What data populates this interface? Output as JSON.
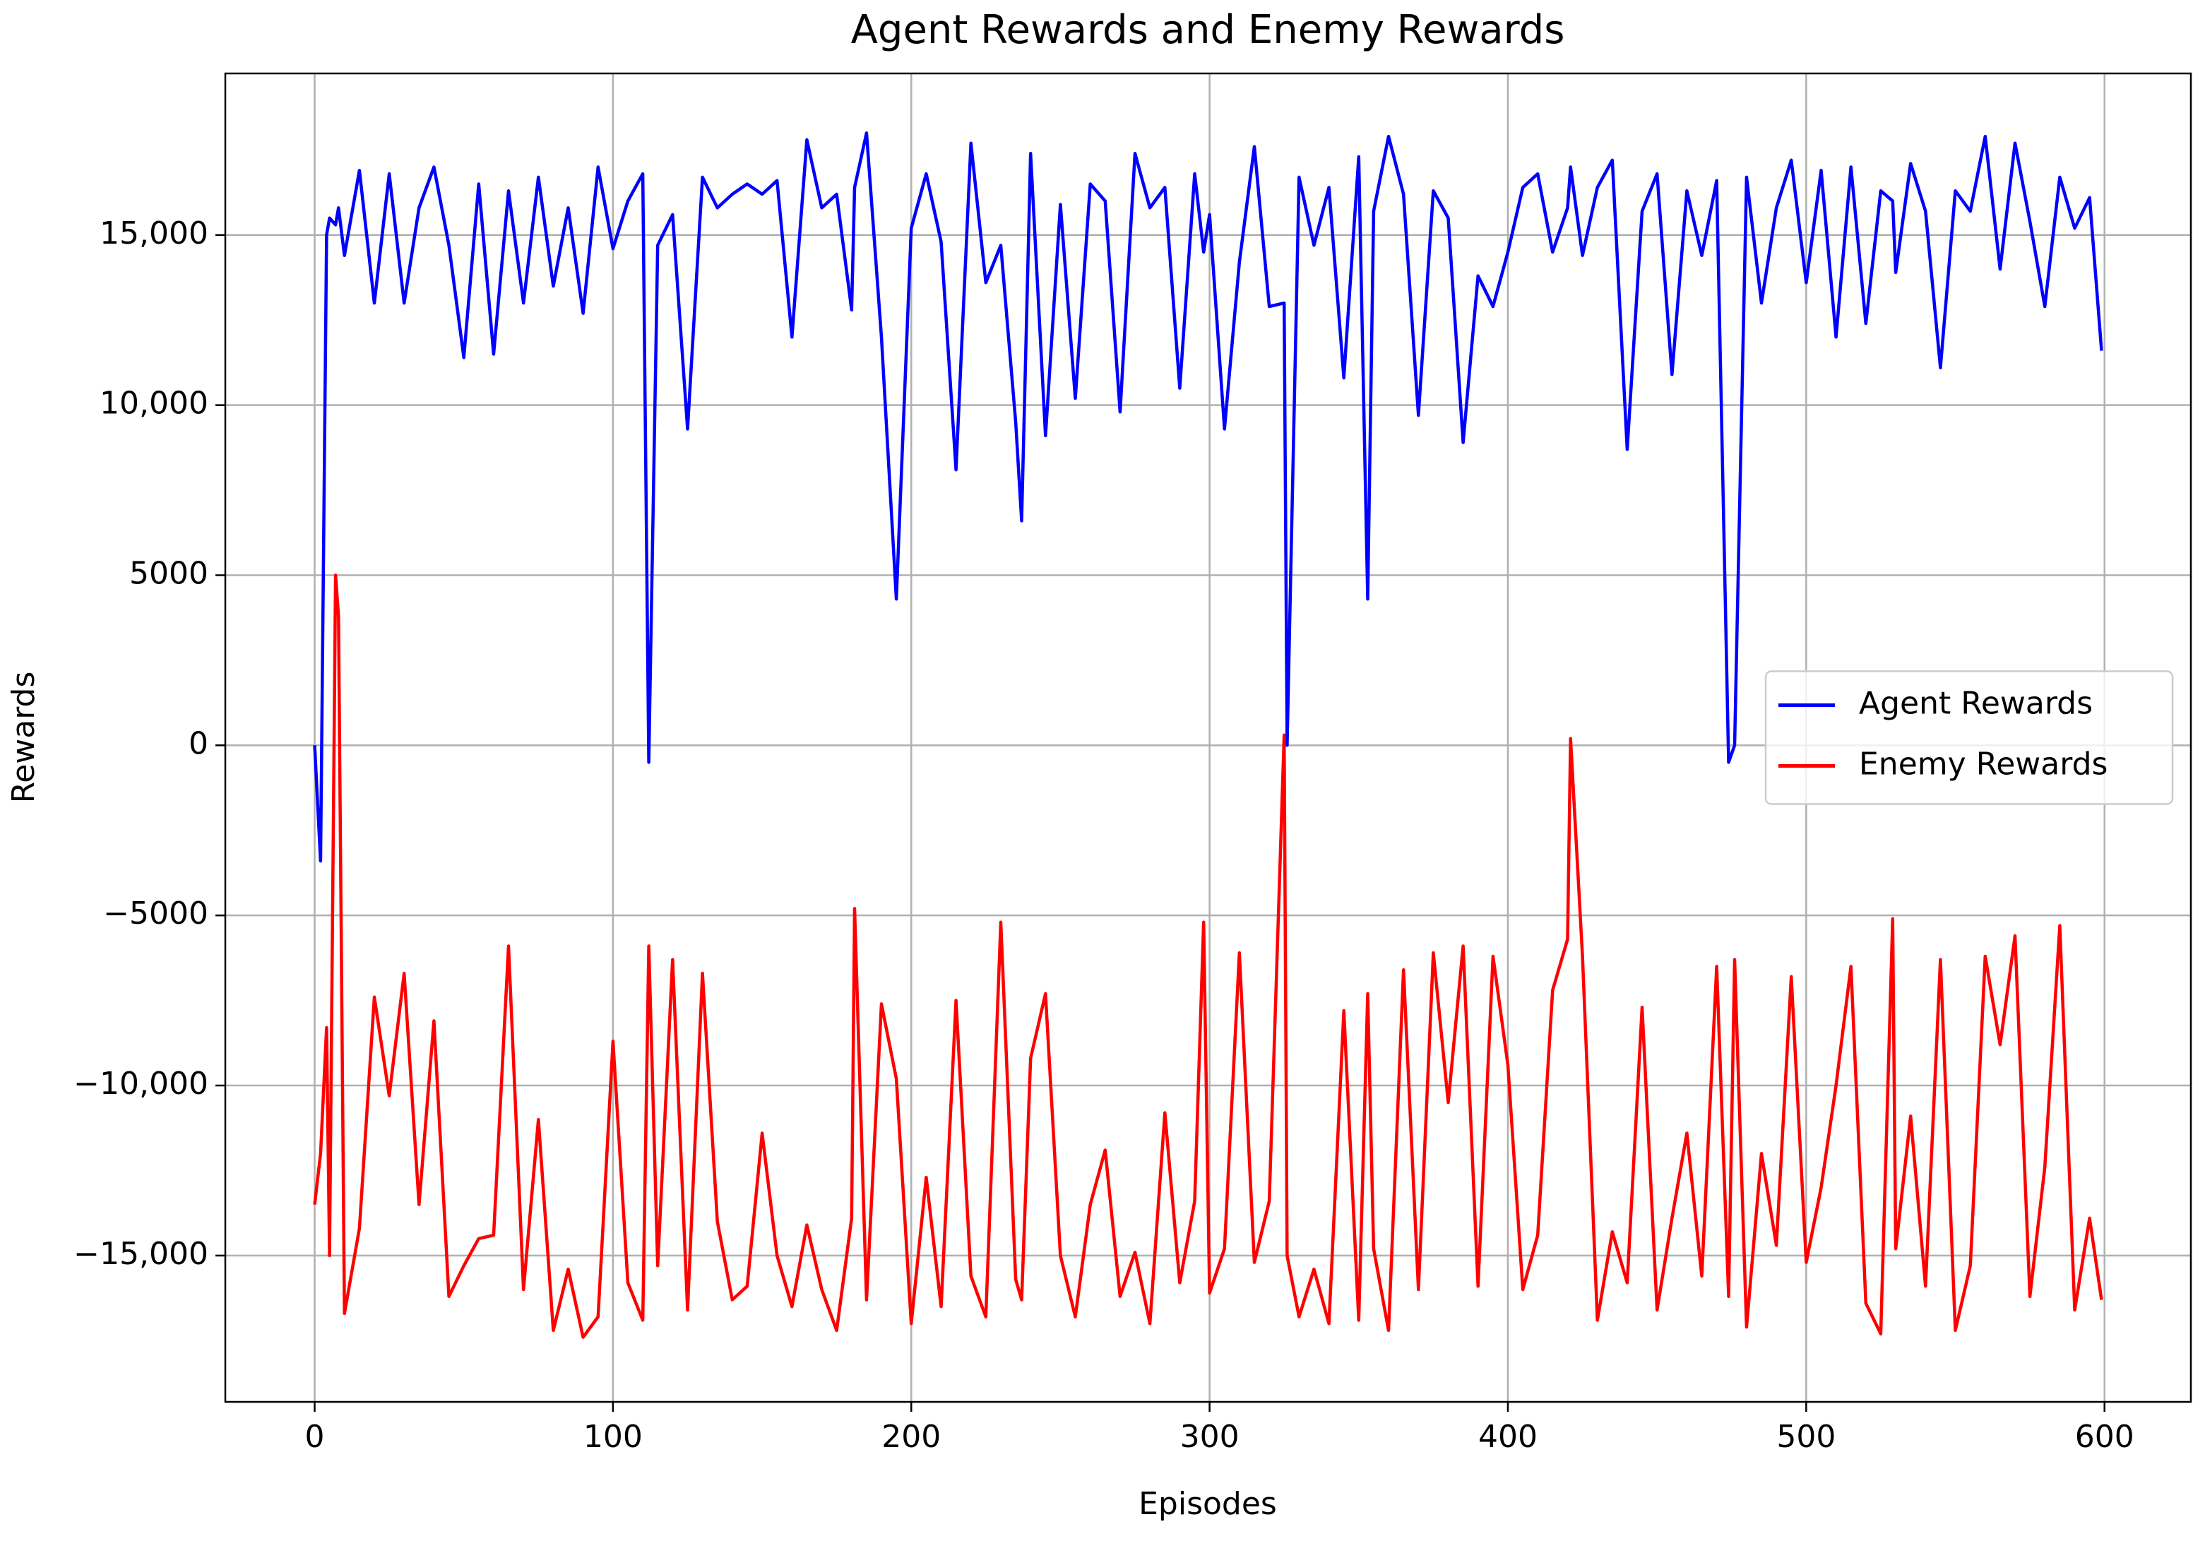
{
  "chart_data": {
    "type": "line",
    "title": "Agent Rewards and Enemy Rewards",
    "xlabel": "Episodes",
    "ylabel": "Rewards",
    "x": [
      0,
      2,
      4,
      5,
      7,
      8,
      10,
      15,
      20,
      25,
      30,
      35,
      40,
      45,
      50,
      55,
      60,
      65,
      70,
      75,
      80,
      85,
      90,
      95,
      100,
      105,
      110,
      112,
      115,
      120,
      125,
      130,
      135,
      140,
      145,
      150,
      155,
      160,
      165,
      170,
      175,
      180,
      181,
      185,
      190,
      195,
      200,
      205,
      210,
      215,
      220,
      225,
      230,
      235,
      237,
      240,
      245,
      250,
      255,
      260,
      265,
      270,
      275,
      280,
      285,
      290,
      295,
      298,
      300,
      305,
      310,
      315,
      320,
      325,
      326,
      330,
      335,
      340,
      345,
      350,
      353,
      355,
      360,
      365,
      370,
      375,
      380,
      385,
      390,
      395,
      400,
      405,
      410,
      415,
      420,
      421,
      425,
      430,
      435,
      440,
      445,
      450,
      455,
      460,
      465,
      470,
      474,
      476,
      480,
      485,
      490,
      495,
      500,
      505,
      510,
      515,
      520,
      525,
      529,
      530,
      535,
      540,
      545,
      550,
      555,
      560,
      565,
      570,
      575,
      580,
      585,
      590,
      595,
      599
    ],
    "series": [
      {
        "name": "Agent Rewards",
        "color": "#0000ff",
        "values": [
          0,
          -3400,
          15000,
          15500,
          15300,
          15800,
          14400,
          16900,
          13000,
          16800,
          13000,
          15800,
          17000,
          14700,
          11400,
          16500,
          11500,
          16300,
          13000,
          16700,
          13500,
          15800,
          12700,
          17000,
          14600,
          16000,
          16800,
          -500,
          14700,
          15600,
          9300,
          16700,
          15800,
          16200,
          16500,
          16200,
          16600,
          12000,
          17800,
          15800,
          16200,
          12800,
          16400,
          18000,
          12000,
          4300,
          15200,
          16800,
          14800,
          8100,
          17700,
          13600,
          14700,
          9500,
          6600,
          17400,
          9100,
          15900,
          10200,
          16500,
          16000,
          9800,
          17400,
          15800,
          16400,
          10500,
          16800,
          14500,
          15600,
          9300,
          14200,
          17600,
          12900,
          13000,
          0,
          16700,
          14700,
          16400,
          10800,
          17300,
          4300,
          15700,
          17900,
          16200,
          9700,
          16300,
          15500,
          8900,
          13800,
          12900,
          14500,
          16400,
          16800,
          14500,
          15800,
          17000,
          14400,
          16400,
          17200,
          8700,
          15700,
          16800,
          10900,
          16300,
          14400,
          16600,
          -500,
          0,
          16700,
          13000,
          15800,
          17200,
          13600,
          16900,
          12000,
          17000,
          12400,
          16300,
          16000,
          13900,
          17100,
          15700,
          11100,
          16300,
          15700,
          17900,
          14000,
          17700,
          15400,
          12900,
          16700,
          15200,
          16100,
          11600
        ]
      },
      {
        "name": "Enemy Rewards",
        "color": "#ff0000",
        "values": [
          -13500,
          -12000,
          -8300,
          -15000,
          5000,
          3800,
          -16700,
          -14200,
          -7400,
          -10300,
          -6700,
          -13500,
          -8100,
          -16200,
          -15300,
          -14500,
          -14400,
          -5900,
          -16000,
          -11000,
          -17200,
          -15400,
          -17400,
          -16800,
          -8700,
          -15800,
          -16900,
          -5900,
          -15300,
          -6300,
          -16600,
          -6700,
          -14000,
          -16300,
          -15900,
          -11400,
          -15000,
          -16500,
          -14100,
          -16000,
          -17200,
          -13900,
          -4800,
          -16300,
          -7600,
          -9800,
          -17000,
          -12700,
          -16500,
          -7500,
          -15600,
          -16800,
          -5200,
          -15700,
          -16300,
          -9200,
          -7300,
          -15000,
          -16800,
          -13500,
          -11900,
          -16200,
          -14900,
          -17000,
          -10800,
          -15800,
          -13400,
          -5200,
          -16100,
          -14800,
          -6100,
          -15200,
          -13400,
          300,
          -15000,
          -16800,
          -15400,
          -17000,
          -7800,
          -16900,
          -7300,
          -14800,
          -17200,
          -6600,
          -16000,
          -6100,
          -10500,
          -5900,
          -15900,
          -6200,
          -9400,
          -16000,
          -14400,
          -7200,
          -5700,
          200,
          -6200,
          -16900,
          -14300,
          -15800,
          -7700,
          -16600,
          -13900,
          -11400,
          -15600,
          -6500,
          -16200,
          -6300,
          -17100,
          -12000,
          -14700,
          -6800,
          -15200,
          -13000,
          -10000,
          -6500,
          -16400,
          -17300,
          -5100,
          -14800,
          -10900,
          -15900,
          -6300,
          -17200,
          -15300,
          -6200,
          -8800,
          -5600,
          -16200,
          -12400,
          -5300,
          -16600,
          -13900,
          -16300
        ]
      }
    ],
    "xlim": [
      -29.95,
      628.95
    ],
    "ylim": [
      -19300,
      19750
    ],
    "xticks": [
      0,
      100,
      200,
      300,
      400,
      500,
      600
    ],
    "yticks": [
      {
        "value": -15000,
        "label": "−15,000"
      },
      {
        "value": -10000,
        "label": "−10,000"
      },
      {
        "value": -5000,
        "label": "−5000"
      },
      0,
      5000,
      {
        "value": 10000,
        "label": "10,000"
      },
      {
        "value": 15000,
        "label": "15,000"
      }
    ],
    "grid": true,
    "legend": "center right"
  }
}
